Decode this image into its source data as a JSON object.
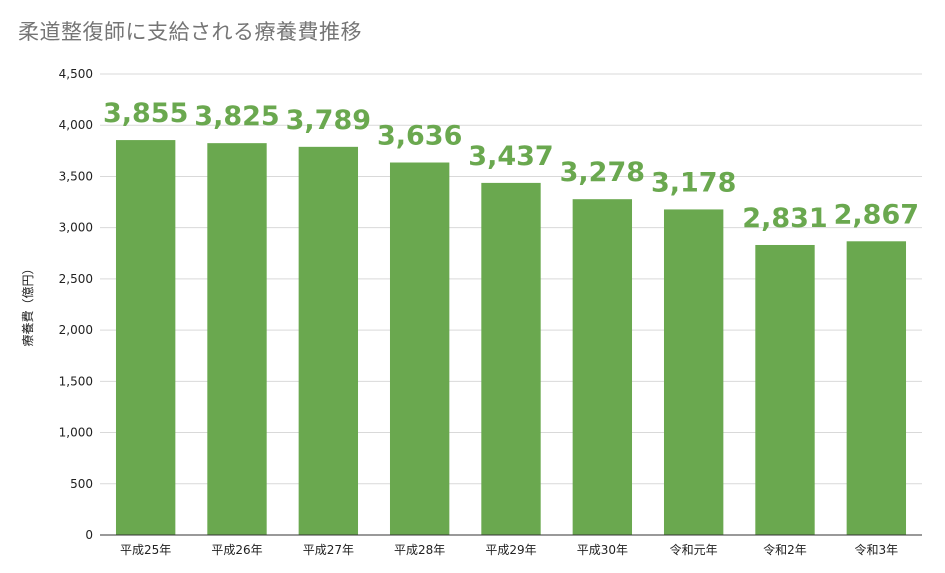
{
  "chart_data": {
    "type": "bar",
    "title": "柔道整復師に支給される療養費推移",
    "xlabel": "",
    "ylabel": "療養費（億円）",
    "categories": [
      "平成25年",
      "平成26年",
      "平成27年",
      "平成28年",
      "平成29年",
      "平成30年",
      "令和元年",
      "令和2年",
      "令和3年"
    ],
    "values": [
      3855,
      3825,
      3789,
      3636,
      3437,
      3278,
      3178,
      2831,
      2867
    ],
    "data_labels": [
      "3,855",
      "3,825",
      "3,789",
      "3,636",
      "3,437",
      "3,278",
      "3,178",
      "2,831",
      "2,867"
    ],
    "ylim": [
      0,
      4500
    ],
    "yticks": [
      0,
      500,
      1000,
      1500,
      2000,
      2500,
      3000,
      3500,
      4000,
      4500
    ],
    "ytick_labels": [
      "0",
      "500",
      "1,000",
      "1,500",
      "2,000",
      "2,500",
      "3,000",
      "3,500",
      "4,000",
      "4,500"
    ],
    "bar_color": "#6aa84f",
    "label_color": "#6aa84f",
    "grid": true,
    "legend": "none"
  }
}
